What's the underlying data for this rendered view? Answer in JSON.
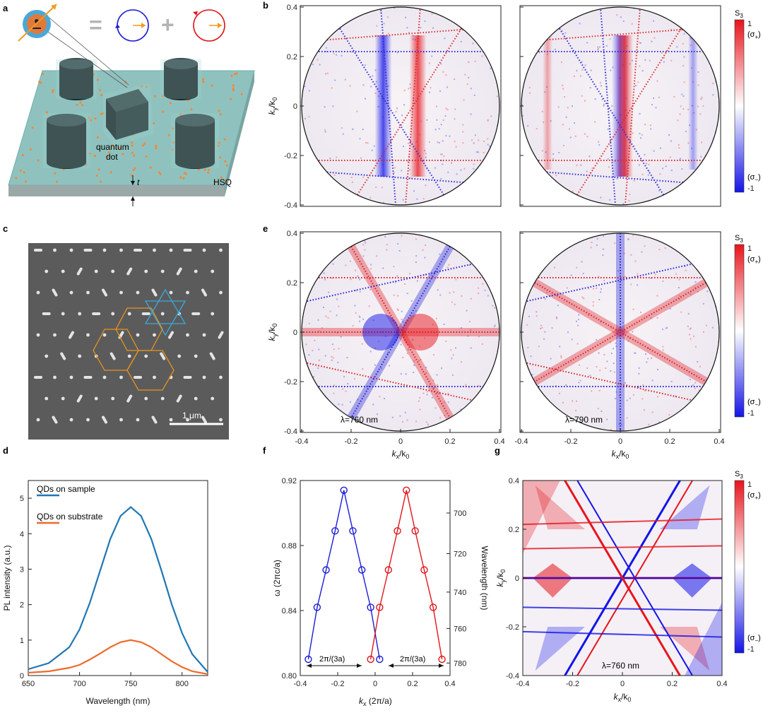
{
  "panels": {
    "a": "a",
    "b": "b",
    "c": "c",
    "d": "d",
    "e": "e",
    "f": "f",
    "g": "g"
  },
  "panel_a": {
    "quantum_dot_label_1": "quantum",
    "quantum_dot_label_2": "dot",
    "hsq_label": "HSQ",
    "t_label": "t",
    "equals": "=",
    "plus": "+"
  },
  "panel_c": {
    "scale_bar": "1 μm"
  },
  "axes": {
    "ky_label_main": "k",
    "ky_sub": "y",
    "kx_label_main": "k",
    "kx_sub": "x",
    "k0": "/k",
    "k0_sub": "0"
  },
  "colorbar": {
    "title": "S",
    "title_sub": "3",
    "top_value": "1",
    "top_pol": "(σ",
    "top_pol_sub": "+",
    "bottom_pol": "(σ",
    "bottom_pol_sub": "−",
    "bottom_value": "-1",
    "colors": {
      "positive": "#e8141c",
      "zero": "#ffffff",
      "negative": "#1414e8"
    }
  },
  "panel_e": {
    "left_wavelength": "λ=760 nm",
    "right_wavelength": "λ=790 nm"
  },
  "panel_g": {
    "wavelength": "λ=760 nm"
  },
  "panel_f": {
    "ylabel": "ω (2πc/a)",
    "y2label": "Wavelength (nm)",
    "xlabel": "k",
    "xlabel_sub": "x",
    "xlabel_rest": " (2π/a)",
    "arrow_label": "2π/(3a)"
  },
  "chart_data": [
    {
      "type": "line",
      "panel": "d",
      "xlabel": "Wavelength (nm)",
      "ylabel": "PL intensity (a.u.)",
      "xlim": [
        650,
        825
      ],
      "ylim": [
        0,
        5.5
      ],
      "xticks": [
        650,
        700,
        750,
        800
      ],
      "yticks": [
        0,
        1,
        2,
        3,
        4,
        5
      ],
      "series": [
        {
          "name": "QDs on sample",
          "color": "#1f77b4",
          "x": [
            650,
            670,
            690,
            700,
            710,
            720,
            730,
            740,
            750,
            760,
            770,
            780,
            790,
            800,
            810,
            825
          ],
          "y": [
            0.18,
            0.35,
            0.8,
            1.3,
            2.05,
            2.95,
            3.85,
            4.5,
            4.75,
            4.5,
            3.85,
            2.95,
            2.0,
            1.2,
            0.6,
            0.1
          ]
        },
        {
          "name": "QDs on substrate",
          "color": "#ee6a2c",
          "x": [
            650,
            670,
            690,
            700,
            710,
            720,
            730,
            740,
            750,
            760,
            770,
            780,
            790,
            800,
            810,
            825
          ],
          "y": [
            0.08,
            0.12,
            0.22,
            0.3,
            0.45,
            0.62,
            0.8,
            0.94,
            1.0,
            0.94,
            0.8,
            0.6,
            0.4,
            0.24,
            0.12,
            0.04
          ]
        }
      ]
    },
    {
      "type": "line",
      "panel": "f",
      "xlim": [
        -0.4,
        0.4
      ],
      "ylim": [
        0.8,
        0.92
      ],
      "xticks": [
        -0.4,
        -0.2,
        0,
        0.2,
        0.4
      ],
      "yticks": [
        0.8,
        0.84,
        0.88,
        0.92
      ],
      "y2ticks": [
        700,
        720,
        740,
        760,
        780
      ],
      "series": [
        {
          "color": "#1c1cd6",
          "x": [
            -0.357,
            -0.31,
            -0.262,
            -0.214,
            -0.167,
            -0.119,
            -0.071,
            -0.024,
            0.024
          ],
          "y": [
            0.81,
            0.842,
            0.865,
            0.889,
            0.914,
            0.889,
            0.865,
            0.842,
            0.81
          ]
        },
        {
          "color": "#e0161c",
          "x": [
            -0.024,
            0.024,
            0.071,
            0.119,
            0.167,
            0.214,
            0.262,
            0.31,
            0.357
          ],
          "y": [
            0.81,
            0.842,
            0.865,
            0.889,
            0.914,
            0.889,
            0.865,
            0.842,
            0.81
          ]
        }
      ]
    }
  ]
}
